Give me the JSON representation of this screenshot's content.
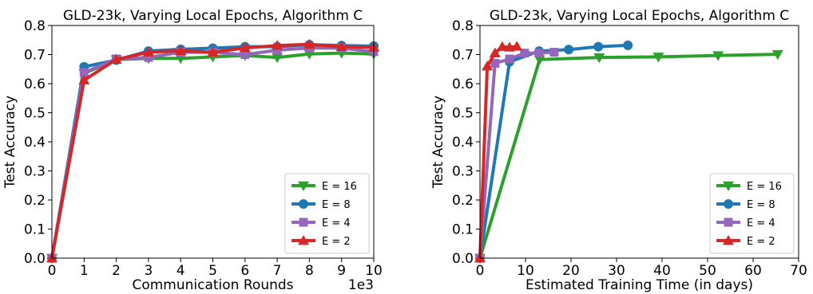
{
  "chart_data": [
    {
      "type": "line",
      "title": "GLD-23k, Varying Local Epochs, Algorithm C",
      "xlabel": "Communication Rounds",
      "ylabel": "Test Accuracy",
      "x_scale_label": "1e3",
      "xlim": [
        0,
        10
      ],
      "ylim": [
        0.0,
        0.8
      ],
      "xticks": [
        "0",
        "1",
        "2",
        "3",
        "4",
        "5",
        "6",
        "7",
        "8",
        "9",
        "10"
      ],
      "yticks": [
        "0.0",
        "0.1",
        "0.2",
        "0.3",
        "0.4",
        "0.5",
        "0.6",
        "0.7",
        "0.8"
      ],
      "legend_position": "lower-right",
      "grid": false,
      "series": [
        {
          "name": "E = 16",
          "color": "#2ca02c",
          "marker": "triangle-down",
          "x": [
            0,
            1,
            2,
            3,
            4,
            5,
            6,
            7,
            8,
            9,
            10
          ],
          "y": [
            0.0,
            0.635,
            0.683,
            0.687,
            0.687,
            0.692,
            0.697,
            0.69,
            0.702,
            0.705,
            0.702
          ]
        },
        {
          "name": "E = 8",
          "color": "#1f77b4",
          "marker": "circle",
          "x": [
            0,
            1,
            2,
            3,
            4,
            5,
            6,
            7,
            8,
            9,
            10
          ],
          "y": [
            0.0,
            0.658,
            0.681,
            0.712,
            0.718,
            0.722,
            0.727,
            0.727,
            0.734,
            0.731,
            0.729
          ]
        },
        {
          "name": "E = 4",
          "color": "#9467bd",
          "marker": "square",
          "x": [
            0,
            1,
            2,
            3,
            4,
            5,
            6,
            7,
            8,
            9,
            10
          ],
          "y": [
            0.0,
            0.638,
            0.685,
            0.69,
            0.708,
            0.708,
            0.7,
            0.715,
            0.723,
            0.722,
            0.71
          ]
        },
        {
          "name": "E = 2",
          "color": "#d62728",
          "marker": "triangle-up",
          "x": [
            0,
            1,
            2,
            3,
            4,
            5,
            6,
            7,
            8,
            9,
            10
          ],
          "y": [
            0.0,
            0.612,
            0.683,
            0.708,
            0.713,
            0.708,
            0.723,
            0.731,
            0.735,
            0.727,
            0.725
          ]
        }
      ]
    },
    {
      "type": "line",
      "title": "GLD-23k, Varying Local Epochs, Algorithm C",
      "xlabel": "Estimated Training Time (in days)",
      "ylabel": "Test Accuracy",
      "xlim": [
        0,
        70
      ],
      "ylim": [
        0.0,
        0.8
      ],
      "xticks": [
        "0",
        "10",
        "20",
        "30",
        "40",
        "50",
        "60",
        "70"
      ],
      "yticks": [
        "0.0",
        "0.1",
        "0.2",
        "0.3",
        "0.4",
        "0.5",
        "0.6",
        "0.7",
        "0.8"
      ],
      "legend_position": "lower-right",
      "grid": false,
      "series": [
        {
          "name": "E = 16",
          "color": "#2ca02c",
          "marker": "triangle-down",
          "x": [
            0,
            13.1,
            26.2,
            39.2,
            52.3,
            65.4
          ],
          "y": [
            0.0,
            0.683,
            0.69,
            0.692,
            0.697,
            0.701
          ]
        },
        {
          "name": "E = 8",
          "color": "#1f77b4",
          "marker": "circle",
          "x": [
            0,
            6.5,
            13.0,
            19.5,
            26.0,
            32.5
          ],
          "y": [
            0.0,
            0.675,
            0.712,
            0.717,
            0.727,
            0.732
          ]
        },
        {
          "name": "E = 4",
          "color": "#9467bd",
          "marker": "square",
          "x": [
            0,
            3.3,
            6.5,
            9.8,
            13.0,
            16.3
          ],
          "y": [
            0.0,
            0.67,
            0.685,
            0.705,
            0.705,
            0.708
          ]
        },
        {
          "name": "E = 2",
          "color": "#d62728",
          "marker": "triangle-up",
          "x": [
            0,
            1.6,
            3.3,
            4.9,
            6.5,
            8.1
          ],
          "y": [
            0.0,
            0.66,
            0.705,
            0.727,
            0.725,
            0.728
          ]
        }
      ]
    }
  ]
}
